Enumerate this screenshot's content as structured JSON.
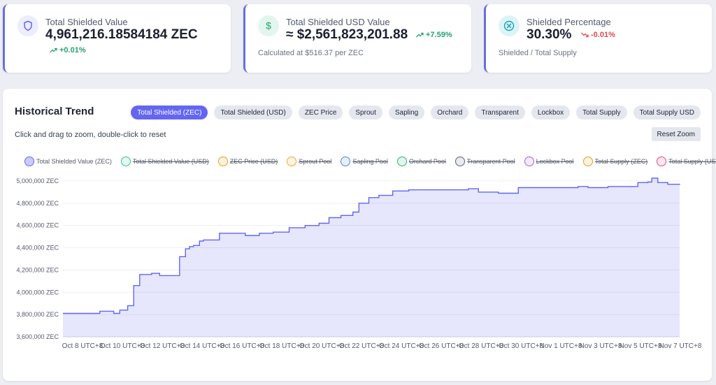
{
  "cards": [
    {
      "label": "Total Shielded Value",
      "value": "4,961,216.18584184 ZEC",
      "change": "+0.01%",
      "direction": "up",
      "icon": "shield-icon",
      "sub": ""
    },
    {
      "label": "Total Shielded USD Value",
      "value": "≈ $2,561,823,201.88",
      "change": "+7.59%",
      "direction": "up",
      "icon": "dollar-icon",
      "sub": "Calculated at $516.37 per ZEC"
    },
    {
      "label": "Shielded Percentage",
      "value": "30.30%",
      "change": "-0.01%",
      "direction": "down",
      "icon": "percent-icon",
      "sub": "Shielded / Total Supply"
    }
  ],
  "panel": {
    "title": "Historical Trend",
    "hint": "Click and drag to zoom, double-click to reset",
    "reset_label": "Reset Zoom"
  },
  "tabs": [
    "Total Shielded (ZEC)",
    "Total Shielded (USD)",
    "ZEC Price",
    "Sprout",
    "Sapling",
    "Orchard",
    "Transparent",
    "Lockbox",
    "Total Supply",
    "Total Supply USD"
  ],
  "active_tab": 0,
  "legend": [
    {
      "label": "Total Shielded Value (ZEC)",
      "color": "#6366f1",
      "active": true
    },
    {
      "label": "Total Shielded Value (USD)",
      "color": "#34c48b",
      "active": false
    },
    {
      "label": "ZEC Price (USD)",
      "color": "#e8a317",
      "active": false
    },
    {
      "label": "Sprout Pool",
      "color": "#f0a92f",
      "active": false
    },
    {
      "label": "Sapling Pool",
      "color": "#4f86d6",
      "active": false
    },
    {
      "label": "Orchard Pool",
      "color": "#2db37c",
      "active": false
    },
    {
      "label": "Transparent Pool",
      "color": "#5b6478",
      "active": false
    },
    {
      "label": "Lockbox Pool",
      "color": "#a464d8",
      "active": false
    },
    {
      "label": "Total Supply (ZEC)",
      "color": "#e3a019",
      "active": false
    },
    {
      "label": "Total Supply (USD)",
      "color": "#e0507e",
      "active": false
    }
  ],
  "chart_data": {
    "type": "area",
    "ylim": [
      3600000,
      5100000
    ],
    "yticks": [
      3600000,
      3800000,
      4000000,
      4200000,
      4400000,
      4600000,
      4800000,
      5000000
    ],
    "ytick_labels": [
      "3,600,000 ZEC",
      "3,800,000 ZEC",
      "4,000,000 ZEC",
      "4,200,000 ZEC",
      "4,400,000 ZEC",
      "4,600,000 ZEC",
      "4,800,000 ZEC",
      "5,000,000 ZEC"
    ],
    "xlim": [
      0,
      31.5
    ],
    "x_tick_positions": [
      0,
      2,
      4,
      6,
      8,
      10,
      12,
      14,
      16,
      18,
      20,
      22,
      24,
      26,
      28,
      30
    ],
    "x_tick_labels": [
      "Oct 8 UTC+8",
      "Oct 10 UTC+8",
      "Oct 12 UTC+8",
      "Oct 14 UTC+8",
      "Oct 16 UTC+8",
      "Oct 18 UTC+8",
      "Oct 20 UTC+8",
      "Oct 22 UTC+8",
      "Oct 24 UTC+8",
      "Oct 26 UTC+8",
      "Oct 28 UTC+8",
      "Oct 30 UTC+8",
      "Nov 1 UTC+8",
      "Nov 3 UTC+8",
      "Nov 5 UTC+8",
      "Nov 7 UTC+8"
    ],
    "series": [
      {
        "name": "Total Shielded Value (ZEC)",
        "color": "#6366f1",
        "x": [
          -0.5,
          1.5,
          2.2,
          2.5,
          2.9,
          3.2,
          3.5,
          4.1,
          4.5,
          5.5,
          5.8,
          6.0,
          6.2,
          6.5,
          6.7,
          7.5,
          8.0,
          8.8,
          9.5,
          10.2,
          11.0,
          11.8,
          12.5,
          13.0,
          13.6,
          14.2,
          14.5,
          15.0,
          15.5,
          16.2,
          17.0,
          18.5,
          20.0,
          20.5,
          21.5,
          22.5,
          24.0,
          25.5,
          26.0,
          27.0,
          27.5,
          28.5,
          29.0,
          29.2,
          29.5,
          30.0,
          30.8
        ],
        "y": [
          3810000,
          3830000,
          3810000,
          3840000,
          3880000,
          4060000,
          4160000,
          4170000,
          4150000,
          4320000,
          4390000,
          4410000,
          4420000,
          4460000,
          4470000,
          4530000,
          4530000,
          4510000,
          4530000,
          4540000,
          4580000,
          4600000,
          4620000,
          4670000,
          4690000,
          4720000,
          4800000,
          4850000,
          4870000,
          4910000,
          4920000,
          4920000,
          4930000,
          4900000,
          4890000,
          4940000,
          4940000,
          4950000,
          4940000,
          4950000,
          4950000,
          4985000,
          4990000,
          5025000,
          4985000,
          4970000,
          4965000
        ]
      }
    ]
  }
}
